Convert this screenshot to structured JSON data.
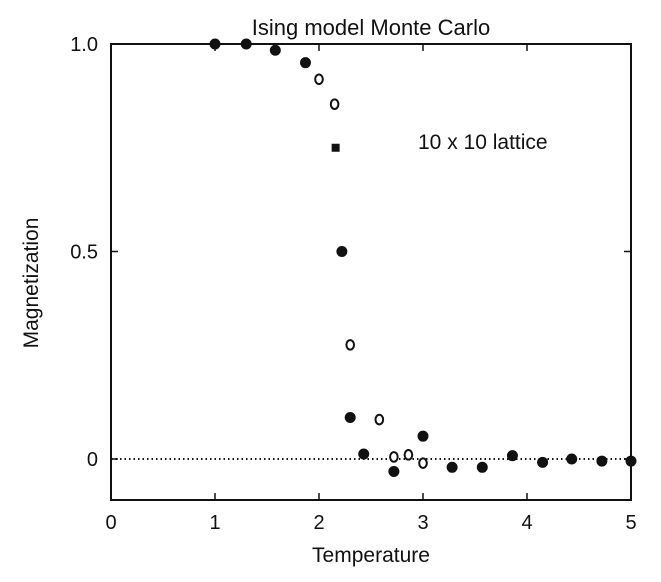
{
  "chart_data": {
    "type": "scatter",
    "title": "Ising model  Monte Carlo",
    "annotation": "10 x 10 lattice",
    "xlabel": "Temperature",
    "ylabel": "Magnetization",
    "xlim": [
      0,
      5
    ],
    "ylim": [
      -0.1,
      1.0
    ],
    "x_ticks": [
      {
        "value": 0,
        "label": "0"
      },
      {
        "value": 1,
        "label": "1"
      },
      {
        "value": 2,
        "label": "2"
      },
      {
        "value": 3,
        "label": "3"
      },
      {
        "value": 4,
        "label": "4"
      },
      {
        "value": 5,
        "label": "5"
      }
    ],
    "y_ticks": [
      {
        "value": 0,
        "label": "0"
      },
      {
        "value": 0.5,
        "label": "0.5"
      },
      {
        "value": 1.0,
        "label": "1.0"
      }
    ],
    "reference_line": {
      "y": 0,
      "style": "dotted"
    },
    "grid": false,
    "series": [
      {
        "marker": "filled-circle",
        "points": [
          {
            "x": 1.0,
            "y": 1.0
          },
          {
            "x": 1.3,
            "y": 1.0
          },
          {
            "x": 1.58,
            "y": 0.985
          },
          {
            "x": 1.87,
            "y": 0.955
          },
          {
            "x": 2.22,
            "y": 0.5
          },
          {
            "x": 2.3,
            "y": 0.1
          },
          {
            "x": 2.43,
            "y": 0.012
          },
          {
            "x": 2.72,
            "y": -0.03
          },
          {
            "x": 3.0,
            "y": 0.055
          },
          {
            "x": 3.28,
            "y": -0.02
          },
          {
            "x": 3.57,
            "y": -0.02
          },
          {
            "x": 3.86,
            "y": 0.008
          },
          {
            "x": 4.15,
            "y": -0.008
          },
          {
            "x": 4.43,
            "y": 0.0
          },
          {
            "x": 4.72,
            "y": -0.005
          },
          {
            "x": 5.0,
            "y": -0.005
          }
        ]
      },
      {
        "marker": "open-circle",
        "points": [
          {
            "x": 2.0,
            "y": 0.915
          },
          {
            "x": 2.15,
            "y": 0.855
          },
          {
            "x": 2.3,
            "y": 0.275
          },
          {
            "x": 2.58,
            "y": 0.095
          },
          {
            "x": 2.72,
            "y": 0.005
          },
          {
            "x": 2.86,
            "y": 0.01
          },
          {
            "x": 3.0,
            "y": -0.01
          }
        ]
      },
      {
        "marker": "filled-square",
        "points": [
          {
            "x": 2.16,
            "y": 0.75
          }
        ]
      }
    ]
  }
}
